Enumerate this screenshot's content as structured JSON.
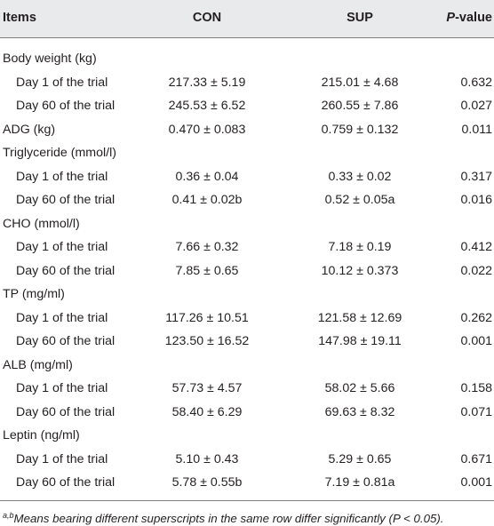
{
  "header": {
    "items": "Items",
    "con": "CON",
    "sup": "SUP",
    "p_italic": "P",
    "p_rest": "-value"
  },
  "rows": [
    {
      "label": "Body weight (kg)",
      "indent": false,
      "con": "",
      "sup": "",
      "p": ""
    },
    {
      "label": "Day 1 of the trial",
      "indent": true,
      "con": "217.33 ± 5.19",
      "sup": "215.01 ± 4.68",
      "p": "0.632"
    },
    {
      "label": "Day 60 of the trial",
      "indent": true,
      "con": "245.53 ± 6.52",
      "sup": "260.55 ± 7.86",
      "p": "0.027"
    },
    {
      "label": "ADG (kg)",
      "indent": false,
      "con": "0.470 ± 0.083",
      "sup": "0.759 ± 0.132",
      "p": "0.011"
    },
    {
      "label": "Triglyceride (mmol/l)",
      "indent": false,
      "con": "",
      "sup": "",
      "p": ""
    },
    {
      "label": "Day 1 of the trial",
      "indent": true,
      "con": "0.36 ± 0.04",
      "sup": "0.33 ± 0.02",
      "p": "0.317"
    },
    {
      "label": "Day 60 of the trial",
      "indent": true,
      "con": "0.41 ± 0.02b",
      "sup": "0.52 ± 0.05a",
      "p": "0.016"
    },
    {
      "label": "CHO (mmol/l)",
      "indent": false,
      "con": "",
      "sup": "",
      "p": ""
    },
    {
      "label": "Day 1 of the trial",
      "indent": true,
      "con": "7.66 ± 0.32",
      "sup": "7.18 ± 0.19",
      "p": "0.412"
    },
    {
      "label": "Day 60 of the trial",
      "indent": true,
      "con": "7.85 ± 0.65",
      "sup": "10.12 ± 0.373",
      "p": "0.022"
    },
    {
      "label": "TP (mg/ml)",
      "indent": false,
      "con": "",
      "sup": "",
      "p": ""
    },
    {
      "label": "Day 1 of the trial",
      "indent": true,
      "con": "117.26 ± 10.51",
      "sup": "121.58 ± 12.69",
      "p": "0.262"
    },
    {
      "label": "Day 60 of the trial",
      "indent": true,
      "con": "123.50 ± 16.52",
      "sup": "147.98 ± 19.11",
      "p": "0.001"
    },
    {
      "label": "ALB (mg/ml)",
      "indent": false,
      "con": "",
      "sup": "",
      "p": ""
    },
    {
      "label": "Day 1 of the trial",
      "indent": true,
      "con": "57.73 ± 4.57",
      "sup": "58.02 ± 5.66",
      "p": "0.158"
    },
    {
      "label": "Day 60 of the trial",
      "indent": true,
      "con": "58.40 ± 6.29",
      "sup": "69.63 ± 8.32",
      "p": "0.071"
    },
    {
      "label": "Leptin (ng/ml)",
      "indent": false,
      "con": "",
      "sup": "",
      "p": ""
    },
    {
      "label": "Day 1 of the trial",
      "indent": true,
      "con": "5.10 ± 0.43",
      "sup": "5.29 ± 0.65",
      "p": "0.671"
    },
    {
      "label": "Day 60 of the trial",
      "indent": true,
      "con": "5.78 ± 0.55b",
      "sup": "7.19 ± 0.81a",
      "p": "0.001"
    }
  ],
  "footnote": {
    "superscript": "a,b",
    "text": "Means bearing different superscripts in the same row differ significantly (P < 0.05)."
  }
}
